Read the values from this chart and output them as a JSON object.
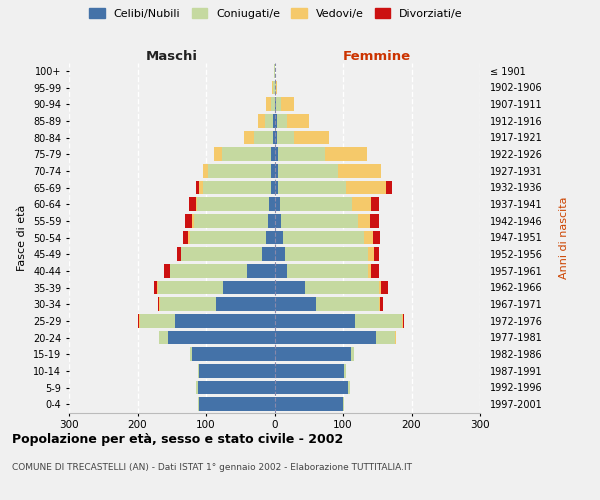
{
  "age_groups": [
    "0-4",
    "5-9",
    "10-14",
    "15-19",
    "20-24",
    "25-29",
    "30-34",
    "35-39",
    "40-44",
    "45-49",
    "50-54",
    "55-59",
    "60-64",
    "65-69",
    "70-74",
    "75-79",
    "80-84",
    "85-89",
    "90-94",
    "95-99",
    "100+"
  ],
  "birth_years": [
    "1997-2001",
    "1992-1996",
    "1987-1991",
    "1982-1986",
    "1977-1981",
    "1972-1976",
    "1967-1971",
    "1962-1966",
    "1957-1961",
    "1952-1956",
    "1947-1951",
    "1942-1946",
    "1937-1941",
    "1932-1936",
    "1927-1931",
    "1922-1926",
    "1917-1921",
    "1912-1916",
    "1907-1911",
    "1902-1906",
    "≤ 1901"
  ],
  "males": {
    "celibi": [
      110,
      112,
      110,
      120,
      155,
      145,
      85,
      75,
      40,
      18,
      12,
      10,
      8,
      5,
      5,
      5,
      2,
      2,
      0,
      0,
      0
    ],
    "coniugati": [
      2,
      2,
      2,
      4,
      14,
      52,
      82,
      95,
      112,
      118,
      112,
      108,
      105,
      100,
      92,
      72,
      28,
      12,
      5,
      2,
      1
    ],
    "vedovi": [
      0,
      0,
      0,
      0,
      0,
      1,
      1,
      1,
      1,
      1,
      2,
      2,
      2,
      5,
      8,
      12,
      14,
      10,
      8,
      2,
      0
    ],
    "divorziati": [
      0,
      0,
      0,
      0,
      0,
      1,
      2,
      5,
      8,
      5,
      8,
      10,
      10,
      5,
      0,
      0,
      0,
      0,
      0,
      0,
      0
    ]
  },
  "females": {
    "nubili": [
      100,
      108,
      102,
      112,
      148,
      118,
      60,
      45,
      18,
      15,
      12,
      10,
      8,
      5,
      5,
      5,
      4,
      4,
      2,
      0,
      0
    ],
    "coniugate": [
      2,
      2,
      2,
      4,
      28,
      68,
      92,
      108,
      118,
      122,
      118,
      112,
      105,
      100,
      88,
      68,
      24,
      14,
      8,
      2,
      1
    ],
    "vedove": [
      0,
      0,
      0,
      0,
      1,
      1,
      2,
      2,
      5,
      8,
      14,
      18,
      28,
      58,
      62,
      62,
      52,
      32,
      18,
      2,
      0
    ],
    "divorziate": [
      0,
      0,
      0,
      0,
      0,
      2,
      5,
      10,
      12,
      8,
      10,
      12,
      12,
      8,
      0,
      0,
      0,
      0,
      0,
      0,
      0
    ]
  },
  "colors": {
    "celibi": "#4472a8",
    "coniugati": "#c5d9a0",
    "vedovi": "#f5c96a",
    "divorziati": "#cc1111"
  },
  "xlim": 300,
  "title": "Popolazione per età, sesso e stato civile - 2002",
  "subtitle": "COMUNE DI TRECASTELLI (AN) - Dati ISTAT 1° gennaio 2002 - Elaborazione TUTTITALIA.IT",
  "ylabel_left": "Fasce di età",
  "ylabel_right": "Anni di nascita",
  "xlabel_left": "Maschi",
  "xlabel_right": "Femmine",
  "legend_labels": [
    "Celibi/Nubili",
    "Coniugati/e",
    "Vedovi/e",
    "Divorziati/e"
  ],
  "bg_color": "#f0f0f0"
}
